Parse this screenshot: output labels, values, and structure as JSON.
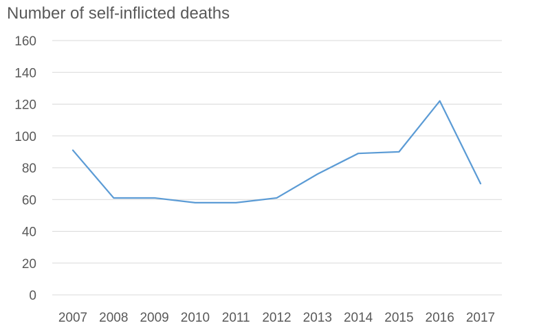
{
  "chart_data": {
    "type": "line",
    "title": "Number of self-inflicted deaths",
    "xlabel": "",
    "ylabel": "",
    "categories": [
      "2007",
      "2008",
      "2009",
      "2010",
      "2011",
      "2012",
      "2013",
      "2014",
      "2015",
      "2016",
      "2017"
    ],
    "series": [
      {
        "values": [
          91,
          61,
          61,
          58,
          58,
          61,
          76,
          89,
          90,
          122,
          70
        ],
        "color": "#5b9bd5"
      }
    ],
    "ylim": [
      0,
      160
    ],
    "yticks": [
      "0",
      "20",
      "40",
      "60",
      "80",
      "100",
      "120",
      "140",
      "160"
    ],
    "grid": true,
    "legend": "none"
  }
}
